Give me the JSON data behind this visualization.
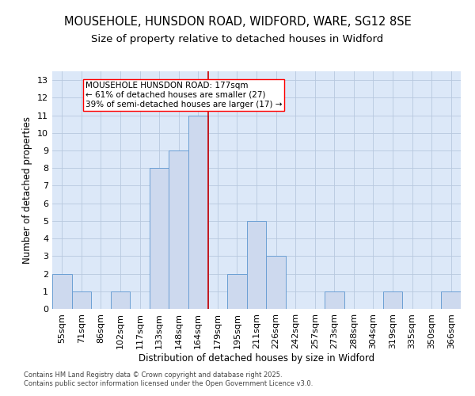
{
  "title": "MOUSEHOLE, HUNSDON ROAD, WIDFORD, WARE, SG12 8SE",
  "subtitle": "Size of property relative to detached houses in Widford",
  "xlabel": "Distribution of detached houses by size in Widford",
  "ylabel": "Number of detached properties",
  "footer1": "Contains HM Land Registry data © Crown copyright and database right 2025.",
  "footer2": "Contains public sector information licensed under the Open Government Licence v3.0.",
  "categories": [
    "55sqm",
    "71sqm",
    "86sqm",
    "102sqm",
    "117sqm",
    "133sqm",
    "148sqm",
    "164sqm",
    "179sqm",
    "195sqm",
    "211sqm",
    "226sqm",
    "242sqm",
    "257sqm",
    "273sqm",
    "288sqm",
    "304sqm",
    "319sqm",
    "335sqm",
    "350sqm",
    "366sqm"
  ],
  "values": [
    2,
    1,
    0,
    1,
    0,
    8,
    9,
    11,
    0,
    2,
    5,
    3,
    0,
    0,
    1,
    0,
    0,
    1,
    0,
    0,
    1
  ],
  "bar_color": "#cdd9ee",
  "bar_edge_color": "#6b9fd4",
  "highlight_line_index": 7,
  "highlight_line_color": "#cc0000",
  "annotation_text": "MOUSEHOLE HUNSDON ROAD: 177sqm\n← 61% of detached houses are smaller (27)\n39% of semi-detached houses are larger (17) →",
  "ylim": [
    0,
    13.5
  ],
  "yticks": [
    0,
    1,
    2,
    3,
    4,
    5,
    6,
    7,
    8,
    9,
    10,
    11,
    12,
    13
  ],
  "grid_color": "#b8c8de",
  "background_color": "#dce8f8",
  "title_fontsize": 10.5,
  "subtitle_fontsize": 9.5,
  "axis_label_fontsize": 8.5,
  "tick_fontsize": 8,
  "annotation_fontsize": 7.5,
  "footer_fontsize": 6
}
